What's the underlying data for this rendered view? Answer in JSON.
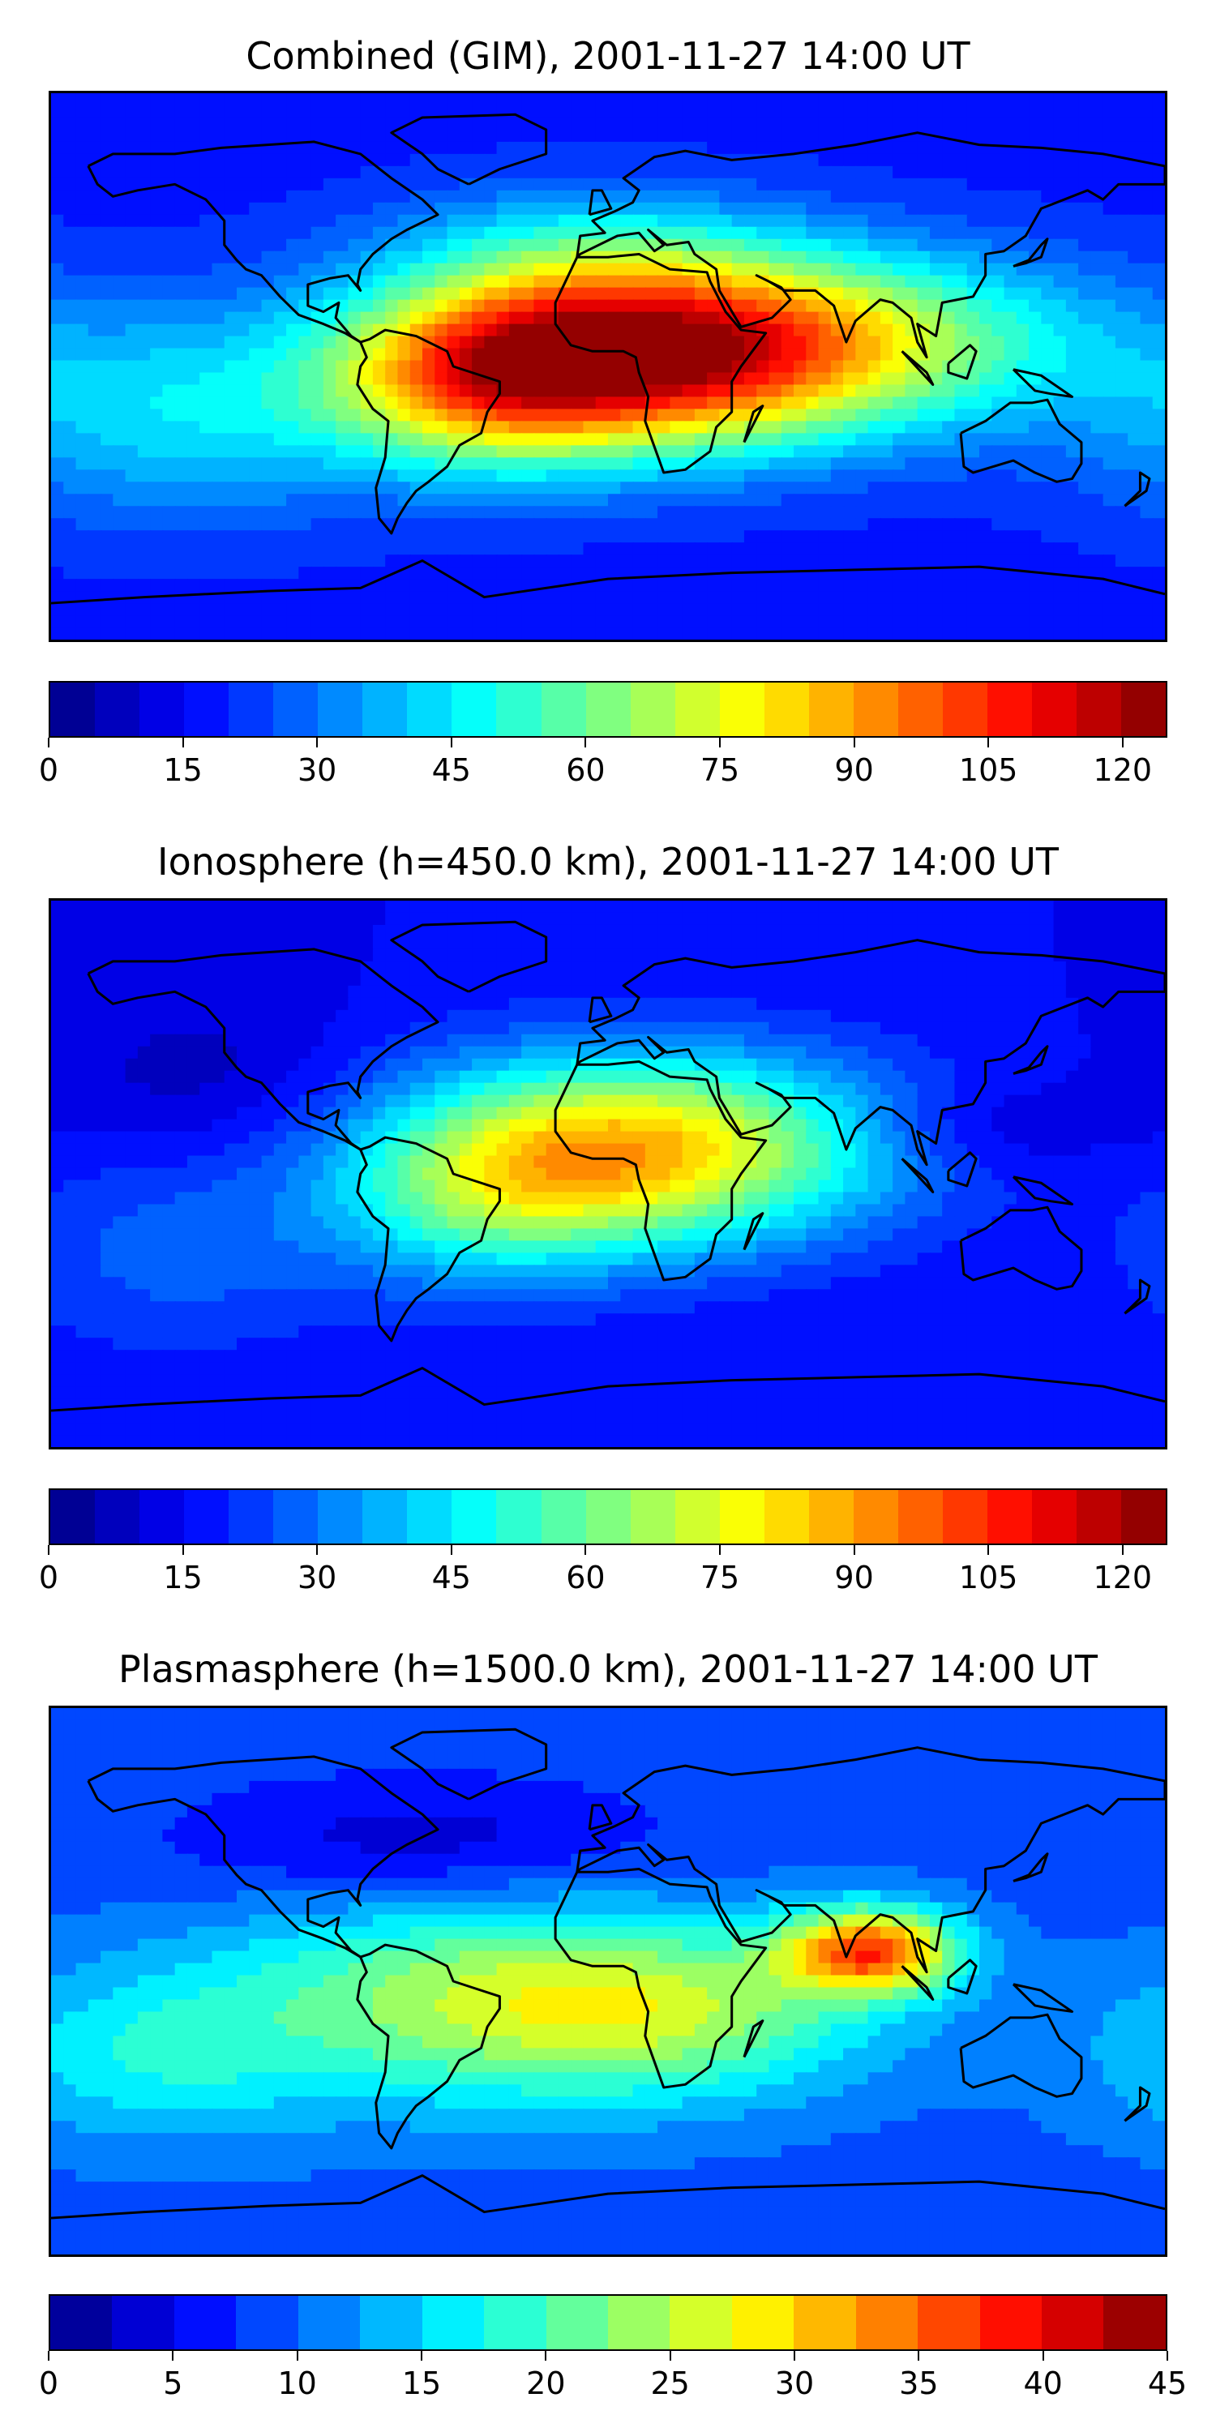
{
  "panels": [
    {
      "title": "Combined (GIM), 2001-11-27 14:00 UT",
      "colorbar": {
        "vmin": 0,
        "vmax": 125,
        "step": 5,
        "ticks": [
          "0",
          "15",
          "30",
          "45",
          "60",
          "75",
          "90",
          "105",
          "120"
        ]
      },
      "field": {
        "background": 18,
        "features": [
          {
            "lon": 15,
            "lat": 5,
            "peak": 100,
            "sx": 55,
            "sy": 22
          },
          {
            "lon": -40,
            "lat": -5,
            "peak": 45,
            "sx": 35,
            "sy": 20
          },
          {
            "lon": 100,
            "lat": 10,
            "peak": 25,
            "sx": 50,
            "sy": 20
          },
          {
            "lon": -10,
            "lat": 40,
            "peak": 15,
            "sx": 45,
            "sy": 15
          },
          {
            "lon": -140,
            "lat": -15,
            "peak": 25,
            "sx": 50,
            "sy": 25
          }
        ]
      }
    },
    {
      "title": "Ionosphere  (h=450.0 km), 2001-11-27 14:00 UT",
      "colorbar": {
        "vmin": 0,
        "vmax": 125,
        "step": 5,
        "ticks": [
          "0",
          "15",
          "30",
          "45",
          "60",
          "75",
          "90",
          "105",
          "120"
        ]
      },
      "field": {
        "background": 15,
        "features": [
          {
            "lon": 10,
            "lat": 8,
            "peak": 70,
            "sx": 55,
            "sy": 22
          },
          {
            "lon": -40,
            "lat": -10,
            "peak": 25,
            "sx": 35,
            "sy": 20
          },
          {
            "lon": 120,
            "lat": 15,
            "peak": -8,
            "sx": 30,
            "sy": 10
          },
          {
            "lon": -130,
            "lat": 30,
            "peak": -8,
            "sx": 35,
            "sy": 20
          },
          {
            "lon": -140,
            "lat": -25,
            "peak": 12,
            "sx": 40,
            "sy": 25
          }
        ]
      }
    },
    {
      "title": "Plasmasphere (h=1500.0 km), 2001-11-27 14:00 UT",
      "colorbar": {
        "vmin": 0,
        "vmax": 45,
        "step": 2.5,
        "ticks": [
          "0",
          "5",
          "10",
          "15",
          "20",
          "25",
          "30",
          "35",
          "40",
          "45"
        ]
      },
      "field": {
        "background": 9,
        "features": [
          {
            "lon": 85,
            "lat": 10,
            "peak": 25,
            "sx": 20,
            "sy": 10
          },
          {
            "lon": -50,
            "lat": -5,
            "peak": 12,
            "sx": 60,
            "sy": 25
          },
          {
            "lon": 20,
            "lat": -10,
            "peak": 12,
            "sx": 50,
            "sy": 20
          },
          {
            "lon": -60,
            "lat": 45,
            "peak": -6,
            "sx": 55,
            "sy": 15
          },
          {
            "lon": -150,
            "lat": -25,
            "peak": 7,
            "sx": 40,
            "sy": 20
          }
        ]
      }
    }
  ],
  "coastline_color": "#000000",
  "colormap": "jet"
}
